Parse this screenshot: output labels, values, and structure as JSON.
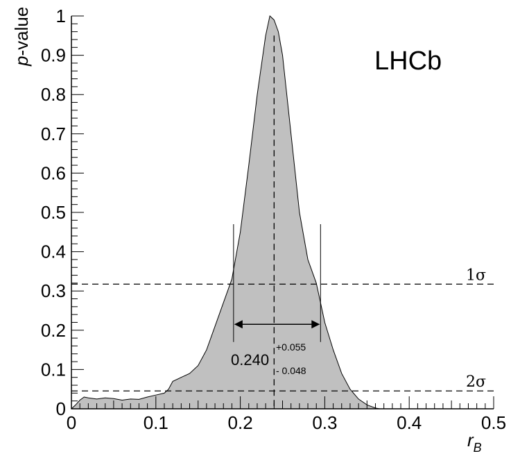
{
  "chart_data": {
    "type": "area",
    "title": "",
    "xlabel_italic": "r",
    "xlabel_sub": "B",
    "ylabel_italic": "p",
    "ylabel_rest": "-value",
    "xlim": [
      0,
      0.5
    ],
    "ylim": [
      0,
      1
    ],
    "xticks": [
      "0",
      "0.1",
      "0.2",
      "0.3",
      "0.4",
      "0.5"
    ],
    "yticks": [
      "0",
      "0.1",
      "0.2",
      "0.3",
      "0.4",
      "0.5",
      "0.6",
      "0.7",
      "0.8",
      "0.9",
      "1"
    ],
    "grid": false,
    "fill_color": "#c0c0c0",
    "series": [
      {
        "x": [
          0.0,
          0.005,
          0.01,
          0.015,
          0.02,
          0.03,
          0.04,
          0.05,
          0.06,
          0.07,
          0.08,
          0.09,
          0.1,
          0.11,
          0.115,
          0.12,
          0.13,
          0.14,
          0.15,
          0.16,
          0.17,
          0.18,
          0.19,
          0.2,
          0.21,
          0.22,
          0.23,
          0.235,
          0.24,
          0.245,
          0.25,
          0.26,
          0.27,
          0.28,
          0.29,
          0.3,
          0.31,
          0.32,
          0.33,
          0.34,
          0.35,
          0.36,
          0.365
        ],
        "y": [
          0.0,
          0.01,
          0.022,
          0.03,
          0.028,
          0.025,
          0.028,
          0.026,
          0.022,
          0.025,
          0.024,
          0.03,
          0.035,
          0.04,
          0.05,
          0.07,
          0.08,
          0.09,
          0.11,
          0.15,
          0.21,
          0.27,
          0.33,
          0.45,
          0.62,
          0.8,
          0.95,
          1.0,
          0.99,
          0.96,
          0.9,
          0.7,
          0.5,
          0.38,
          0.32,
          0.22,
          0.15,
          0.09,
          0.05,
          0.025,
          0.01,
          0.002,
          0.0
        ]
      }
    ],
    "central_value": 0.24,
    "interval": [
      0.192,
      0.295
    ],
    "sigma_levels": [
      {
        "label": "1σ",
        "p": 0.3173
      },
      {
        "label": "2σ",
        "p": 0.0455
      }
    ],
    "result": {
      "value": "0.240",
      "plus": "+0.055",
      "minus": "- 0.048"
    },
    "annotation": "LHCb"
  }
}
